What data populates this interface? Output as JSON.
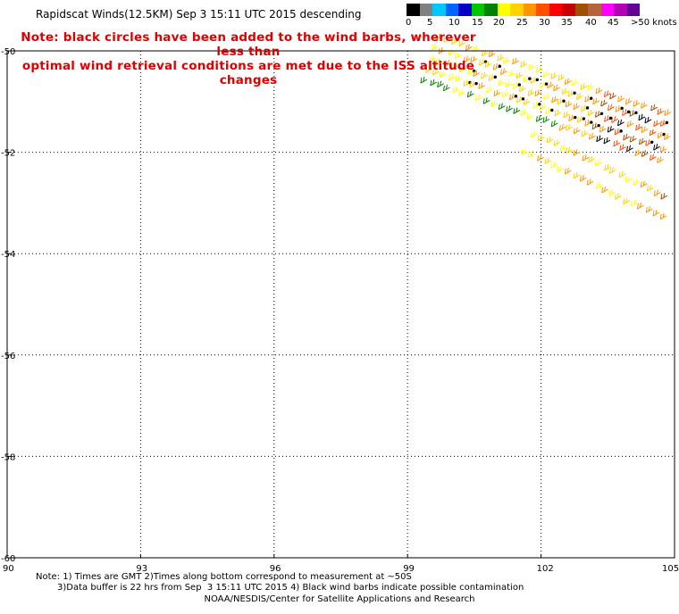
{
  "title": "Rapidscat Winds(12.5KM) Sep  3 15:11 UTC 2015 descending",
  "note_line1": "Note: black circles have been added to the wind barbs, wherever less than",
  "note_line2": "optimal wind retrieval conditions are met due to the ISS altitude changes",
  "legend": {
    "colors": [
      "#000000",
      "#808080",
      "#00c8ff",
      "#0064ff",
      "#0000c8",
      "#00c800",
      "#008200",
      "#ffff00",
      "#ffd200",
      "#ff9600",
      "#ff5000",
      "#ff0000",
      "#c80000",
      "#a05000",
      "#b4643c",
      "#ff00ff",
      "#b400b4",
      "#640096"
    ],
    "labels": [
      "0",
      "5",
      "10",
      "15",
      "20",
      "25",
      "30",
      "35",
      "40",
      "45",
      ">50 knots"
    ]
  },
  "map": {
    "lon_ticks": [
      "90",
      "93",
      "96",
      "99",
      "102",
      "105"
    ],
    "lat_ticks": [
      "-50",
      "-52",
      "-54",
      "-56",
      "-58",
      "-60"
    ],
    "lon_range": [
      90,
      105
    ],
    "lat_range": [
      -60,
      -50
    ],
    "swaths": [
      {
        "name": "upper swath",
        "start": [
          99.6,
          -50.1
        ],
        "end": [
          105,
          -51.7
        ],
        "width_deg": 0.9,
        "colors": [
          "#ffd200",
          "#ff9600",
          "#ff5000",
          "#a05000",
          "#000000",
          "#008200",
          "#ffff00"
        ]
      },
      {
        "name": "lower swath",
        "start": [
          101.8,
          -51.75
        ],
        "end": [
          105,
          -53.1
        ],
        "width_deg": 0.4,
        "colors": [
          "#ffd200",
          "#ff9600",
          "#ffff00",
          "#a05000"
        ]
      }
    ]
  },
  "footer_line1": "Note: 1) Times are GMT 2)Times along bottom correspond to measurement at ~50S",
  "footer_line2": "3)Data buffer is 22 hrs from Sep  3 15:11 UTC 2015 4) Black wind barbs indicate possible contamination",
  "credit": "NOAA/NESDIS/Center for Satellite Applications and Research"
}
